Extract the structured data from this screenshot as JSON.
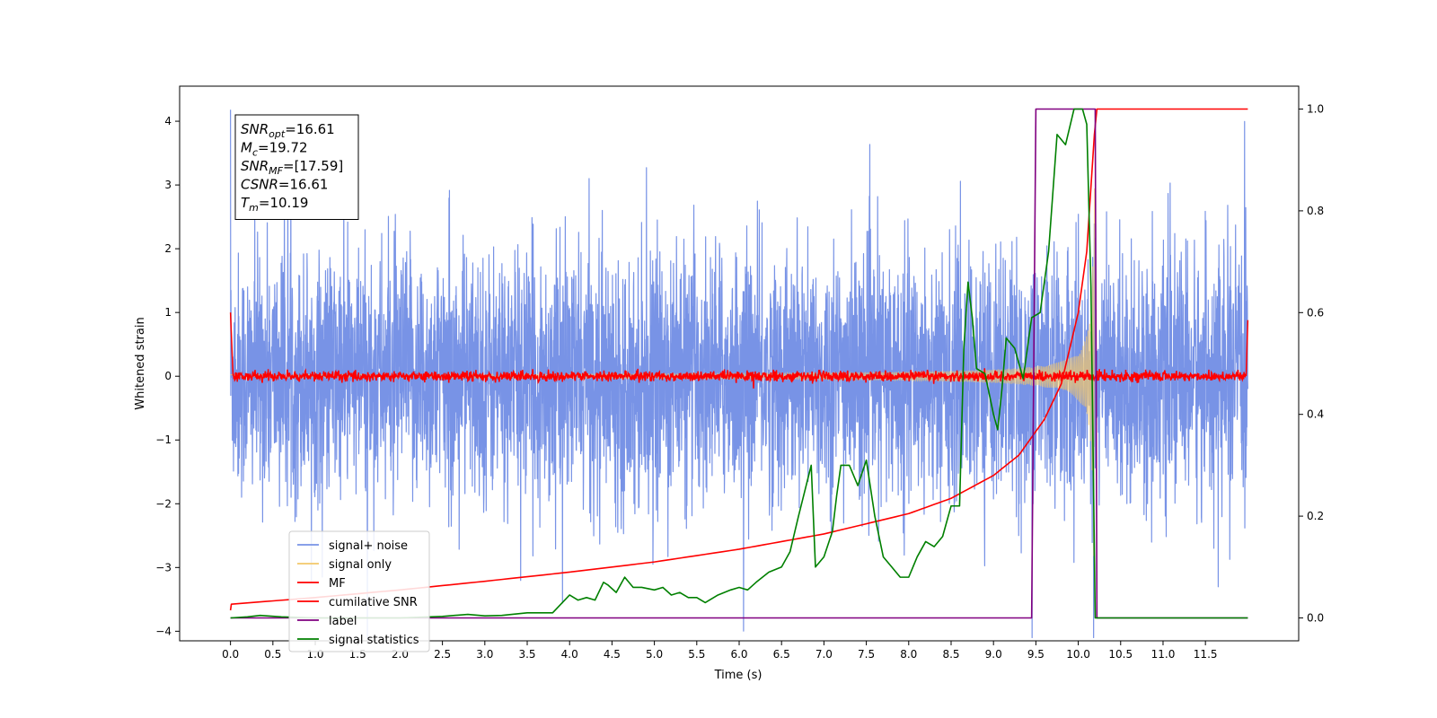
{
  "chart_data": {
    "type": "line",
    "xlabel": "Time (s)",
    "ylabel": "Whitened strain",
    "ylabel_right": "",
    "xlim": [
      -0.6,
      12.6
    ],
    "ylim": [
      -4.15,
      4.55
    ],
    "ylim_right": [
      -0.045,
      1.045
    ],
    "xticks": [
      0.0,
      0.5,
      1.0,
      1.5,
      2.0,
      2.5,
      3.0,
      3.5,
      4.0,
      4.5,
      5.0,
      5.5,
      6.0,
      6.5,
      7.0,
      7.5,
      8.0,
      8.5,
      9.0,
      9.5,
      10.0,
      10.5,
      11.0,
      11.5
    ],
    "xtick_labels": [
      "0.0",
      "0.5",
      "1.0",
      "1.5",
      "2.0",
      "2.5",
      "3.0",
      "3.5",
      "4.0",
      "4.5",
      "5.0",
      "5.5",
      "6.0",
      "6.5",
      "7.0",
      "7.5",
      "8.0",
      "8.5",
      "9.0",
      "9.5",
      "10.0",
      "10.5",
      "11.0",
      "11.5"
    ],
    "yticks": [
      -4,
      -3,
      -2,
      -1,
      0,
      1,
      2,
      3,
      4
    ],
    "ytick_labels": [
      "−4",
      "−3",
      "−2",
      "−1",
      "0",
      "1",
      "2",
      "3",
      "4"
    ],
    "yticks_right": [
      0.0,
      0.2,
      0.4,
      0.6,
      0.8,
      1.0
    ],
    "ytick_right_labels": [
      "0.0",
      "0.2",
      "0.4",
      "0.6",
      "0.8",
      "1.0"
    ],
    "grid": false,
    "legend_placement": "lower-left",
    "annotation": {
      "lines": [
        {
          "sym": "SNR",
          "sub": "opt",
          "value": "=16.61"
        },
        {
          "sym": "M",
          "sub": "c",
          "value": "=19.72"
        },
        {
          "sym": "SNR",
          "sub": "MF",
          "value": "=[17.59]"
        },
        {
          "sym": "CSNR",
          "sub": "",
          "value": "=16.61"
        },
        {
          "sym": "T",
          "sub": "m",
          "value": "=10.19"
        }
      ]
    },
    "series": [
      {
        "name": "signal+ noise",
        "axis": "left",
        "color": "#7893e6",
        "kind": "noise",
        "t_start": 0.0,
        "t_end": 12.0,
        "noise_sigma": 0.95,
        "peak_value": 4.18,
        "peak_time": 0.0
      },
      {
        "name": "signal only",
        "axis": "left",
        "color": "#f3c86a",
        "kind": "chirp",
        "t_start": 0.0,
        "t_end": 10.19,
        "amp_max": 3.0
      },
      {
        "name": "MF",
        "axis": "left",
        "color": "#ff0000",
        "kind": "mf",
        "t_start": 0.0,
        "t_end": 12.0,
        "start_value": 1.0,
        "end_value": 0.88,
        "noise_sigma": 0.04
      },
      {
        "name": "cumilative SNR",
        "axis": "right",
        "color": "#ff0000",
        "kind": "line",
        "x": [
          0.0,
          0.01,
          1.0,
          2.0,
          3.0,
          4.0,
          5.0,
          6.0,
          6.5,
          7.0,
          7.5,
          8.0,
          8.5,
          9.0,
          9.3,
          9.6,
          9.8,
          10.0,
          10.1,
          10.19,
          10.22,
          12.0
        ],
        "y": [
          0.015,
          0.027,
          0.04,
          0.055,
          0.072,
          0.09,
          0.11,
          0.135,
          0.15,
          0.165,
          0.185,
          0.205,
          0.235,
          0.28,
          0.32,
          0.39,
          0.46,
          0.6,
          0.72,
          0.95,
          1.0,
          1.0
        ]
      },
      {
        "name": "label",
        "axis": "right",
        "color": "#800080",
        "kind": "line",
        "x": [
          0.0,
          9.45,
          9.5,
          10.2,
          10.22,
          12.0
        ],
        "y": [
          0.0,
          0.0,
          1.0,
          1.0,
          0.0,
          0.0
        ]
      },
      {
        "name": "signal statistics",
        "axis": "right",
        "color": "#008000",
        "kind": "line",
        "x": [
          0.0,
          0.2,
          0.35,
          0.6,
          1.0,
          1.5,
          2.0,
          2.5,
          2.8,
          3.0,
          3.2,
          3.5,
          3.8,
          4.0,
          4.1,
          4.2,
          4.3,
          4.4,
          4.45,
          4.55,
          4.65,
          4.75,
          4.85,
          5.0,
          5.1,
          5.2,
          5.3,
          5.4,
          5.5,
          5.6,
          5.75,
          5.9,
          6.0,
          6.1,
          6.2,
          6.35,
          6.5,
          6.6,
          6.7,
          6.85,
          6.9,
          7.0,
          7.1,
          7.15,
          7.2,
          7.3,
          7.4,
          7.5,
          7.6,
          7.7,
          7.8,
          7.9,
          8.0,
          8.1,
          8.2,
          8.3,
          8.4,
          8.5,
          8.6,
          8.65,
          8.7,
          8.75,
          8.8,
          8.9,
          9.0,
          9.05,
          9.1,
          9.15,
          9.25,
          9.35,
          9.45,
          9.55,
          9.65,
          9.75,
          9.85,
          9.95,
          10.05,
          10.1,
          10.15,
          10.2,
          10.27,
          12.0
        ],
        "y": [
          0.0,
          0.002,
          0.005,
          0.002,
          0.0,
          0.0,
          0.0,
          0.003,
          0.007,
          0.004,
          0.005,
          0.01,
          0.01,
          0.045,
          0.035,
          0.04,
          0.035,
          0.07,
          0.065,
          0.05,
          0.08,
          0.06,
          0.06,
          0.055,
          0.06,
          0.045,
          0.05,
          0.04,
          0.04,
          0.03,
          0.045,
          0.055,
          0.06,
          0.055,
          0.07,
          0.09,
          0.1,
          0.13,
          0.2,
          0.3,
          0.1,
          0.12,
          0.17,
          0.24,
          0.3,
          0.3,
          0.26,
          0.31,
          0.2,
          0.12,
          0.1,
          0.08,
          0.08,
          0.12,
          0.15,
          0.14,
          0.16,
          0.22,
          0.22,
          0.53,
          0.66,
          0.59,
          0.49,
          0.48,
          0.4,
          0.37,
          0.45,
          0.55,
          0.53,
          0.47,
          0.59,
          0.6,
          0.72,
          0.95,
          0.93,
          1.0,
          1.0,
          0.97,
          0.65,
          0.0,
          0.0,
          0.0
        ]
      }
    ]
  }
}
